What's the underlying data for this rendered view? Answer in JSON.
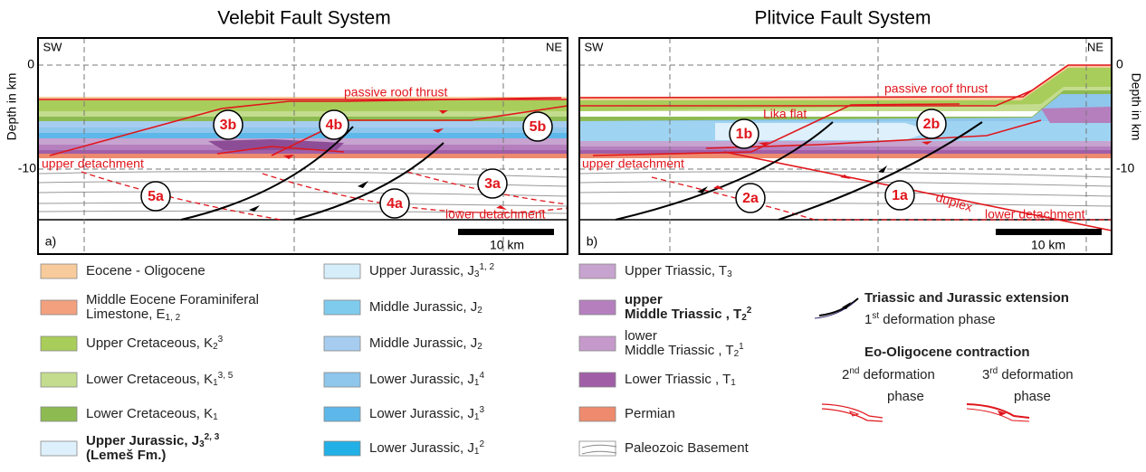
{
  "panels": [
    {
      "title": "Velebit Fault System",
      "label": "a)",
      "left_end": "SW",
      "right_end": "NE",
      "depth_axis": "Depth in km",
      "depth_ticks": [
        "0",
        "-10"
      ],
      "scale": "10 km",
      "annotations": [
        "passive roof thrust",
        "upper detachment",
        "lower detachment"
      ],
      "phases": [
        "3b",
        "4b",
        "5b",
        "5a",
        "4a",
        "3a"
      ]
    },
    {
      "title": "Plitvice Fault System",
      "label": "b)",
      "left_end": "SW",
      "right_end": "NE",
      "depth_axis": "Depth in km",
      "depth_ticks": [
        "0",
        "-10"
      ],
      "scale": "10 km",
      "annotations": [
        "passive roof thrust",
        "Lika flat",
        "upper detachment",
        "duplex",
        "lower detachment"
      ],
      "phases": [
        "1b",
        "2b",
        "2a",
        "1a"
      ]
    }
  ],
  "legend": {
    "units": [
      {
        "color": "#f8cb9c",
        "lines": [
          [
            {
              "text": "Eocene - Oligocene"
            }
          ]
        ]
      },
      {
        "color": "#f2a07e",
        "lines": [
          [
            {
              "text": "Middle Eocene Foraminiferal"
            }
          ],
          [
            {
              "text": "Limestone, E"
            },
            {
              "sub": "1, 2"
            }
          ]
        ]
      },
      {
        "color": "#a9cd5a",
        "lines": [
          [
            {
              "text": "Upper Cretaceous, K"
            },
            {
              "sub": "2"
            },
            {
              "sup": "3"
            }
          ]
        ]
      },
      {
        "color": "#c3dc8e",
        "lines": [
          [
            {
              "text": "Lower Cretaceous, K"
            },
            {
              "sub": "1"
            },
            {
              "sup": "3, 5"
            }
          ]
        ]
      },
      {
        "color": "#8dbb52",
        "lines": [
          [
            {
              "text": "Lower Cretaceous, K"
            },
            {
              "sub": "1"
            }
          ]
        ]
      },
      {
        "color": "#def0fb",
        "bold": true,
        "lines": [
          [
            {
              "text": "Upper Jurassic, J"
            },
            {
              "sub": "3"
            },
            {
              "sup": "2, 3"
            }
          ],
          [
            {
              "text": "(Lemeš Fm.)"
            }
          ]
        ]
      },
      {
        "color": "#d6edfa",
        "lines": [
          [
            {
              "text": "Upper Jurassic, J"
            },
            {
              "sub": "3"
            },
            {
              "sup": "1, 2"
            }
          ]
        ]
      },
      {
        "color": "#7fcbee",
        "lines": [
          [
            {
              "text": "Middle Jurassic, J"
            },
            {
              "sub": "2"
            }
          ]
        ]
      },
      {
        "color": "#a6cdef",
        "lines": [
          [
            {
              "text": "Middle Jurassic, J"
            },
            {
              "sub": "2"
            }
          ]
        ]
      },
      {
        "color": "#8fc6ec",
        "lines": [
          [
            {
              "text": "Lower Jurassic, J"
            },
            {
              "sub": "1"
            },
            {
              "sup": "4"
            }
          ]
        ]
      },
      {
        "color": "#5db8e9",
        "lines": [
          [
            {
              "text": "Lower Jurassic, J"
            },
            {
              "sub": "1"
            },
            {
              "sup": "3"
            }
          ]
        ]
      },
      {
        "color": "#22b0e6",
        "lines": [
          [
            {
              "text": "Lower Jurassic, J"
            },
            {
              "sub": "1"
            },
            {
              "sup": "2"
            }
          ]
        ]
      },
      {
        "color": "#c7a3cf",
        "lines": [
          [
            {
              "text": "Upper Triassic, T"
            },
            {
              "sub": "3"
            }
          ]
        ]
      },
      {
        "color": "#b57fbe",
        "bold": true,
        "lines": [
          [
            {
              "text": "upper"
            }
          ],
          [
            {
              "text": "Middle Triassic , T"
            },
            {
              "sub": "2"
            },
            {
              "sup": "2"
            }
          ]
        ]
      },
      {
        "color": "#c59acb",
        "lines": [
          [
            {
              "text": "lower"
            }
          ],
          [
            {
              "text": "Middle Triassic , T"
            },
            {
              "sub": "2"
            },
            {
              "sup": "1"
            }
          ]
        ]
      },
      {
        "color": "#a05ea6",
        "lines": [
          [
            {
              "text": "Lower Triassic , T"
            },
            {
              "sub": "1"
            }
          ]
        ]
      },
      {
        "color": "#ee8a6d",
        "lines": [
          [
            {
              "text": "Permian"
            }
          ]
        ]
      },
      {
        "color": "#ffffff",
        "lines": [
          [
            {
              "text": "Paleozoic Basement"
            }
          ]
        ]
      }
    ],
    "extension": {
      "title": "Triassic and Jurassic extension",
      "lines": [
        [
          {
            "text": "1"
          },
          {
            "sup": "st"
          },
          {
            "text": " deformation phase"
          }
        ]
      ]
    },
    "contraction": {
      "title": "Eo-Oligocene contraction",
      "phases": [
        {
          "lines": [
            [
              {
                "text": "2"
              },
              {
                "sup": "nd"
              },
              {
                "text": " deformation"
              }
            ],
            [
              {
                "text": "phase"
              }
            ]
          ]
        },
        {
          "lines": [
            [
              {
                "text": "3"
              },
              {
                "sup": "rd"
              },
              {
                "text": " deformation"
              }
            ],
            [
              {
                "text": "phase"
              }
            ]
          ]
        }
      ]
    }
  }
}
